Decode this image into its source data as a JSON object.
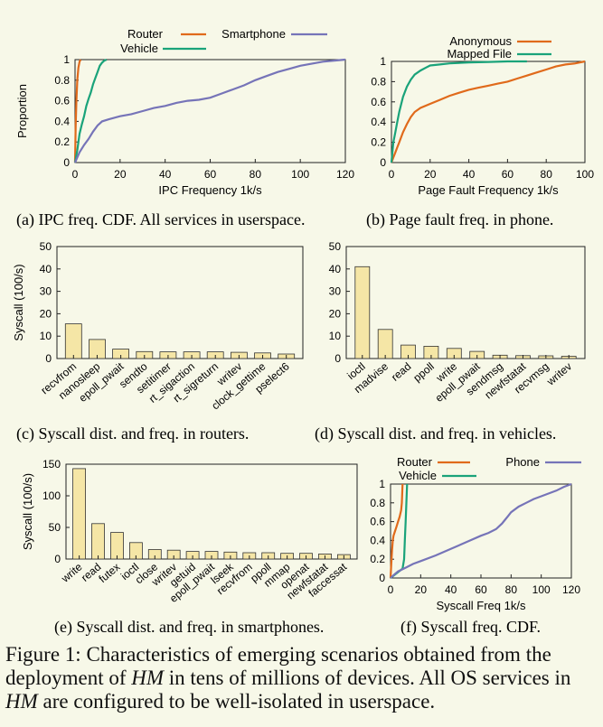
{
  "colors": {
    "router": "#e06a1b",
    "vehicle": "#1aa37a",
    "phone": "#7674b8",
    "bar_fill": "#f5e6a6",
    "bar_stroke": "#333333",
    "background": "#f7f8e8"
  },
  "caption": {
    "label": "Figure 1:",
    "parts": [
      "Characteristics of emerging scenarios obtained from the deployment of ",
      "HM",
      " in tens of millions of devices. All OS services in ",
      "HM",
      " are configured to be well-isolated in userspace."
    ]
  },
  "chart_data": [
    {
      "id": "a",
      "type": "line",
      "caption": "(a) IPC freq. CDF. All services in userspace.",
      "xlabel": "IPC Frequency 1k/s",
      "ylabel": "Proportion",
      "xlim": [
        0,
        120
      ],
      "ylim": [
        0,
        1
      ],
      "xticks": [
        "0",
        "20",
        "40",
        "60",
        "80",
        "100",
        "120"
      ],
      "yticks": [
        "0",
        "0.2",
        "0.4",
        "0.6",
        "0.8",
        "1"
      ],
      "legend_position": "top",
      "series": [
        {
          "name": "Router",
          "color_key": "router",
          "x": [
            0,
            0.3,
            0.6,
            1.0,
            1.5,
            2.0,
            2.5
          ],
          "y": [
            0,
            0.35,
            0.6,
            0.8,
            0.92,
            0.98,
            1.0
          ]
        },
        {
          "name": "Vehicle",
          "color_key": "vehicle",
          "x": [
            0,
            1,
            2,
            3,
            4,
            5,
            6,
            7,
            8,
            9,
            10,
            11,
            12,
            13,
            14
          ],
          "y": [
            0,
            0.12,
            0.28,
            0.37,
            0.45,
            0.55,
            0.62,
            0.68,
            0.76,
            0.82,
            0.88,
            0.94,
            0.97,
            0.99,
            1.0
          ]
        },
        {
          "name": "Smartphone",
          "color_key": "phone",
          "x": [
            0,
            2,
            4,
            6,
            8,
            10,
            12,
            15,
            20,
            25,
            30,
            35,
            40,
            45,
            50,
            55,
            60,
            65,
            70,
            75,
            80,
            85,
            90,
            95,
            100,
            105,
            110,
            115,
            120
          ],
          "y": [
            0,
            0.1,
            0.17,
            0.23,
            0.3,
            0.36,
            0.4,
            0.42,
            0.45,
            0.47,
            0.5,
            0.53,
            0.55,
            0.58,
            0.6,
            0.61,
            0.63,
            0.67,
            0.71,
            0.75,
            0.8,
            0.84,
            0.88,
            0.91,
            0.94,
            0.96,
            0.98,
            0.99,
            1.0
          ]
        }
      ]
    },
    {
      "id": "b",
      "type": "line",
      "caption": "(b) Page fault freq. in phone.",
      "xlabel": "Page Fault Frequency 1k/s",
      "ylabel": "",
      "xlim": [
        0,
        100
      ],
      "ylim": [
        0,
        1
      ],
      "xticks": [
        "0",
        "20",
        "40",
        "60",
        "80",
        "100"
      ],
      "yticks": [
        "0",
        "0.2",
        "0.4",
        "0.6",
        "0.8",
        "1"
      ],
      "legend_position": "top",
      "series": [
        {
          "name": "Anonymous",
          "color_key": "router",
          "x": [
            0,
            1,
            2,
            3,
            4,
            6,
            8,
            10,
            12,
            15,
            20,
            25,
            30,
            35,
            40,
            45,
            50,
            55,
            60,
            65,
            70,
            75,
            80,
            85,
            90,
            95,
            100
          ],
          "y": [
            0,
            0.05,
            0.1,
            0.15,
            0.2,
            0.3,
            0.38,
            0.45,
            0.5,
            0.54,
            0.58,
            0.62,
            0.66,
            0.69,
            0.72,
            0.74,
            0.76,
            0.78,
            0.8,
            0.83,
            0.86,
            0.89,
            0.92,
            0.95,
            0.97,
            0.98,
            1.0
          ]
        },
        {
          "name": "Mapped File",
          "color_key": "vehicle",
          "x": [
            0,
            1,
            2,
            3,
            4,
            6,
            8,
            10,
            12,
            15,
            18,
            20,
            25,
            30,
            40,
            50,
            60,
            70
          ],
          "y": [
            0,
            0.2,
            0.3,
            0.4,
            0.5,
            0.65,
            0.75,
            0.82,
            0.87,
            0.91,
            0.94,
            0.96,
            0.97,
            0.98,
            0.99,
            0.995,
            1.0,
            1.0
          ]
        }
      ]
    },
    {
      "id": "c",
      "type": "bar",
      "caption": "(c) Syscall dist. and freq. in routers.",
      "ylabel": "Syscall (100/s)",
      "ylim": [
        0,
        50
      ],
      "yticks": [
        "0",
        "10",
        "20",
        "30",
        "40",
        "50"
      ],
      "categories": [
        "recvfrom",
        "nanosleep",
        "epoll_pwait",
        "sendto",
        "setitimer",
        "rt_sigaction",
        "rt_sigreturn",
        "writev",
        "clock_gettime",
        "pselect6"
      ],
      "values": [
        15.5,
        8.5,
        4.2,
        3.1,
        3.0,
        3.0,
        3.0,
        2.8,
        2.5,
        2.0
      ]
    },
    {
      "id": "d",
      "type": "bar",
      "caption": "(d) Syscall dist. and freq. in vehicles.",
      "ylabel": "",
      "ylim": [
        0,
        50
      ],
      "yticks": [
        "0",
        "10",
        "20",
        "30",
        "40",
        "50"
      ],
      "categories": [
        "ioctl",
        "madvise",
        "read",
        "ppoll",
        "write",
        "epoll_pwait",
        "sendmsg",
        "newfstatat",
        "recvmsg",
        "writev"
      ],
      "values": [
        41,
        13,
        6,
        5.5,
        4.5,
        3.2,
        1.5,
        1.3,
        1.2,
        1.0
      ]
    },
    {
      "id": "e",
      "type": "bar",
      "caption": "(e) Syscall dist. and freq. in smartphones.",
      "ylabel": "Syscall (100/s)",
      "ylim": [
        0,
        150
      ],
      "yticks": [
        "0",
        "50",
        "100",
        "150"
      ],
      "categories": [
        "write",
        "read",
        "futex",
        "ioctl",
        "close",
        "writev",
        "getuid",
        "epoll_pwait",
        "lseek",
        "recvfrom",
        "ppoll",
        "mmap",
        "openat",
        "newfstatat",
        "faccessat"
      ],
      "values": [
        143,
        56,
        42,
        26,
        15,
        14,
        12,
        12,
        11,
        10,
        10,
        9,
        9,
        8,
        7
      ]
    },
    {
      "id": "f",
      "type": "line",
      "caption": "(f) Syscall freq. CDF.",
      "xlabel": "Syscall Freq 1k/s",
      "ylabel": "",
      "xlim": [
        0,
        120
      ],
      "ylim": [
        0,
        1
      ],
      "xticks": [
        "0",
        "20",
        "40",
        "60",
        "80",
        "100",
        "120"
      ],
      "yticks": [
        "0",
        "0.2",
        "0.4",
        "0.6",
        "0.8",
        "1"
      ],
      "legend_position": "top",
      "series": [
        {
          "name": "Router",
          "color_key": "router",
          "x": [
            0,
            0.5,
            1,
            1.5,
            2,
            3,
            4,
            5,
            6,
            7,
            7.5,
            8
          ],
          "y": [
            0,
            0.15,
            0.3,
            0.4,
            0.45,
            0.5,
            0.55,
            0.6,
            0.65,
            0.72,
            0.8,
            1.0
          ]
        },
        {
          "name": "Vehicle",
          "color_key": "vehicle",
          "x": [
            0,
            8,
            9,
            9.5,
            10,
            10.5,
            11
          ],
          "y": [
            0,
            0.1,
            0.2,
            0.4,
            0.6,
            0.8,
            1.0
          ]
        },
        {
          "name": "Phone",
          "color_key": "phone",
          "x": [
            0,
            2,
            5,
            10,
            15,
            20,
            30,
            40,
            50,
            60,
            65,
            70,
            72,
            74,
            76,
            78,
            80,
            85,
            90,
            95,
            100,
            105,
            110,
            115,
            120
          ],
          "y": [
            0,
            0.03,
            0.07,
            0.11,
            0.15,
            0.18,
            0.24,
            0.31,
            0.38,
            0.45,
            0.48,
            0.52,
            0.55,
            0.58,
            0.62,
            0.66,
            0.7,
            0.76,
            0.8,
            0.84,
            0.87,
            0.9,
            0.93,
            0.97,
            1.0
          ]
        }
      ]
    }
  ]
}
